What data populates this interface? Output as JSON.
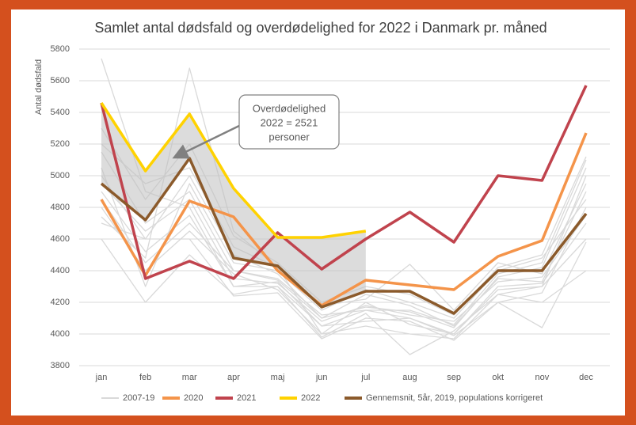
{
  "chart_data": {
    "type": "line",
    "title": "Samlet antal dødsfald og overdødelighed for 2022 i Danmark pr. måned",
    "y_label": "Antal dødsfald",
    "categories": [
      "jan",
      "feb",
      "mar",
      "apr",
      "maj",
      "jun",
      "jul",
      "aug",
      "sep",
      "okt",
      "nov",
      "dec"
    ],
    "ylim": [
      3800,
      5800
    ],
    "yticks": [
      3800,
      4000,
      4200,
      4400,
      4600,
      4800,
      5000,
      5200,
      5400,
      5600,
      5800
    ],
    "grid": true,
    "annotation": [
      "Overdødelighed",
      "2022 = 2521",
      "personer"
    ],
    "series": [
      {
        "name": "2007-19",
        "color": "#d9d9d9",
        "lines": [
          [
            5740,
            4900,
            4800,
            4300,
            4330,
            4050,
            4150,
            4100,
            3990,
            4200,
            4260,
            4800
          ],
          [
            4740,
            4480,
            5680,
            4650,
            4420,
            4000,
            4200,
            4060,
            4000,
            4280,
            4300,
            5000
          ],
          [
            4600,
            4200,
            4500,
            4250,
            4300,
            3980,
            4130,
            3870,
            4020,
            4250,
            4200,
            4400
          ],
          [
            5000,
            4600,
            5000,
            4500,
            4380,
            4100,
            4250,
            4180,
            4050,
            4350,
            4330,
            4900
          ],
          [
            5150,
            4700,
            4900,
            4400,
            4350,
            4120,
            4150,
            4150,
            4060,
            4380,
            4450,
            5100
          ],
          [
            4900,
            4520,
            4750,
            4300,
            4300,
            4050,
            4080,
            4100,
            4000,
            4300,
            4320,
            4700
          ],
          [
            5300,
            4850,
            5200,
            4620,
            4450,
            4200,
            4300,
            4250,
            4120,
            4420,
            4500,
            5120
          ],
          [
            4800,
            4400,
            4650,
            4380,
            4280,
            4000,
            4050,
            4000,
            3970,
            4250,
            4300,
            4600
          ],
          [
            5050,
            4300,
            4950,
            4450,
            4400,
            4150,
            4280,
            4200,
            4100,
            4400,
            4480,
            4850
          ],
          [
            4700,
            4600,
            4600,
            4240,
            4260,
            3970,
            4100,
            4080,
            3960,
            4200,
            4040,
            4580
          ],
          [
            5200,
            4950,
            5050,
            4550,
            4420,
            4180,
            4220,
            4440,
            4150,
            4450,
            4380,
            4950
          ],
          [
            4950,
            4650,
            4850,
            4350,
            4320,
            4080,
            4180,
            4120,
            4080,
            4330,
            4360,
            4750
          ],
          [
            4850,
            4450,
            4700,
            4400,
            4340,
            4100,
            4170,
            4140,
            4040,
            4360,
            4420,
            5050
          ]
        ]
      },
      {
        "name": "2020",
        "color": "#f4944a",
        "values": [
          4850,
          4370,
          4840,
          4740,
          4400,
          4180,
          4340,
          4310,
          4280,
          4490,
          4590,
          5270
        ]
      },
      {
        "name": "2021",
        "color": "#c0434d",
        "values": [
          5460,
          4350,
          4460,
          4350,
          4640,
          4410,
          4600,
          4770,
          4580,
          5000,
          4970,
          5570
        ]
      },
      {
        "name": "2022",
        "color": "#ffd200",
        "values": [
          5460,
          5030,
          5390,
          4920,
          4610,
          4610,
          4650,
          null,
          null,
          null,
          null,
          null
        ]
      },
      {
        "name": "Gennemsnit, 5år, 2019, populations korrigeret",
        "color": "#8b5a2b",
        "values": [
          4950,
          4720,
          5110,
          4480,
          4430,
          4170,
          4270,
          4270,
          4130,
          4400,
          4400,
          4760
        ]
      }
    ]
  }
}
